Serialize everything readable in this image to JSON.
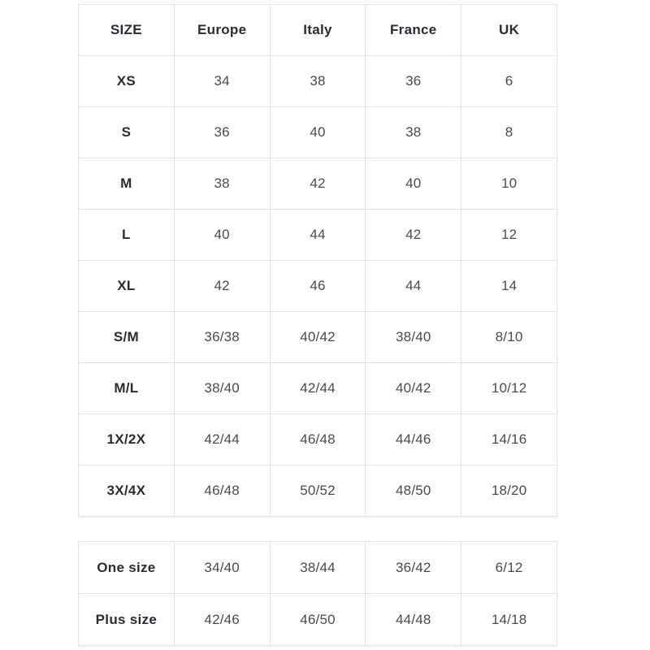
{
  "colors": {
    "background": "#ffffff",
    "border": "#e3e3e3",
    "header_text": "#2c2c35",
    "value_text": "#4a4a53"
  },
  "table1": {
    "headers": [
      "SIZE",
      "Europe",
      "Italy",
      "France",
      "UK"
    ],
    "rows": [
      {
        "label": "XS",
        "values": [
          "34",
          "38",
          "36",
          "6"
        ]
      },
      {
        "label": "S",
        "values": [
          "36",
          "40",
          "38",
          "8"
        ]
      },
      {
        "label": "M",
        "values": [
          "38",
          "42",
          "40",
          "10"
        ]
      },
      {
        "label": "L",
        "values": [
          "40",
          "44",
          "42",
          "12"
        ]
      },
      {
        "label": "XL",
        "values": [
          "42",
          "46",
          "44",
          "14"
        ]
      },
      {
        "label": "S/M",
        "values": [
          "36/38",
          "40/42",
          "38/40",
          "8/10"
        ]
      },
      {
        "label": "M/L",
        "values": [
          "38/40",
          "42/44",
          "40/42",
          "10/12"
        ]
      },
      {
        "label": "1X/2X",
        "values": [
          "42/44",
          "46/48",
          "44/46",
          "14/16"
        ]
      },
      {
        "label": "3X/4X",
        "values": [
          "46/48",
          "50/52",
          "48/50",
          "18/20"
        ]
      }
    ]
  },
  "table2": {
    "rows": [
      {
        "label": "One size",
        "values": [
          "34/40",
          "38/44",
          "36/42",
          "6/12"
        ]
      },
      {
        "label": "Plus size",
        "values": [
          "42/46",
          "46/50",
          "44/48",
          "14/18"
        ]
      }
    ]
  }
}
